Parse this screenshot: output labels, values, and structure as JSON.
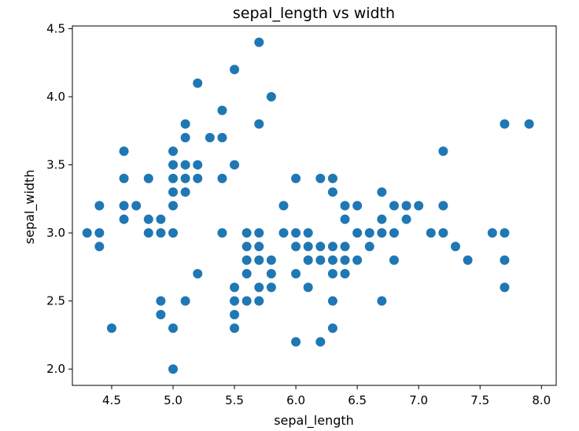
{
  "chart_data": {
    "type": "scatter",
    "title": "sepal_length vs width",
    "xlabel": "sepal_length",
    "ylabel": "sepal_width",
    "xlim": [
      4.18,
      8.12
    ],
    "ylim": [
      1.88,
      4.52
    ],
    "xticks": [
      "4.5",
      "5.0",
      "5.5",
      "6.0",
      "6.5",
      "7.0",
      "7.5",
      "8.0"
    ],
    "yticks": [
      "2.0",
      "2.5",
      "3.0",
      "3.5",
      "4.0",
      "4.5"
    ],
    "grid": false,
    "marker_color": "#1f77b4",
    "points": [
      [
        4.3,
        3.0
      ],
      [
        4.4,
        3.0
      ],
      [
        4.4,
        3.2
      ],
      [
        4.4,
        2.9
      ],
      [
        4.5,
        2.3
      ],
      [
        4.6,
        3.6
      ],
      [
        4.6,
        3.4
      ],
      [
        4.6,
        3.2
      ],
      [
        4.6,
        3.1
      ],
      [
        4.7,
        3.2
      ],
      [
        4.8,
        3.4
      ],
      [
        4.8,
        3.1
      ],
      [
        4.8,
        3.0
      ],
      [
        4.9,
        3.1
      ],
      [
        4.9,
        3.0
      ],
      [
        4.9,
        2.5
      ],
      [
        4.9,
        2.4
      ],
      [
        5.0,
        3.6
      ],
      [
        5.0,
        3.5
      ],
      [
        5.0,
        3.4
      ],
      [
        5.0,
        3.3
      ],
      [
        5.0,
        3.2
      ],
      [
        5.0,
        3.0
      ],
      [
        5.0,
        2.3
      ],
      [
        5.0,
        2.0
      ],
      [
        5.1,
        3.8
      ],
      [
        5.1,
        3.7
      ],
      [
        5.1,
        3.5
      ],
      [
        5.1,
        3.4
      ],
      [
        5.1,
        3.3
      ],
      [
        5.1,
        2.5
      ],
      [
        5.2,
        4.1
      ],
      [
        5.2,
        3.5
      ],
      [
        5.2,
        3.4
      ],
      [
        5.2,
        2.7
      ],
      [
        5.3,
        3.7
      ],
      [
        5.4,
        3.9
      ],
      [
        5.4,
        3.7
      ],
      [
        5.4,
        3.4
      ],
      [
        5.4,
        3.0
      ],
      [
        5.5,
        4.2
      ],
      [
        5.5,
        3.5
      ],
      [
        5.5,
        2.6
      ],
      [
        5.5,
        2.5
      ],
      [
        5.5,
        2.4
      ],
      [
        5.5,
        2.3
      ],
      [
        5.6,
        3.0
      ],
      [
        5.6,
        2.9
      ],
      [
        5.6,
        2.8
      ],
      [
        5.6,
        2.7
      ],
      [
        5.6,
        2.5
      ],
      [
        5.7,
        4.4
      ],
      [
        5.7,
        3.8
      ],
      [
        5.7,
        3.0
      ],
      [
        5.7,
        2.9
      ],
      [
        5.7,
        2.8
      ],
      [
        5.7,
        2.6
      ],
      [
        5.7,
        2.5
      ],
      [
        5.8,
        4.0
      ],
      [
        5.8,
        2.8
      ],
      [
        5.8,
        2.7
      ],
      [
        5.8,
        2.6
      ],
      [
        5.9,
        3.2
      ],
      [
        5.9,
        3.0
      ],
      [
        6.0,
        3.4
      ],
      [
        6.0,
        3.0
      ],
      [
        6.0,
        2.9
      ],
      [
        6.0,
        2.7
      ],
      [
        6.0,
        2.2
      ],
      [
        6.1,
        3.0
      ],
      [
        6.1,
        2.9
      ],
      [
        6.1,
        2.8
      ],
      [
        6.1,
        2.6
      ],
      [
        6.2,
        3.4
      ],
      [
        6.2,
        2.9
      ],
      [
        6.2,
        2.8
      ],
      [
        6.2,
        2.2
      ],
      [
        6.3,
        3.4
      ],
      [
        6.3,
        3.3
      ],
      [
        6.3,
        2.9
      ],
      [
        6.3,
        2.8
      ],
      [
        6.3,
        2.7
      ],
      [
        6.3,
        2.5
      ],
      [
        6.3,
        2.3
      ],
      [
        6.4,
        3.2
      ],
      [
        6.4,
        3.1
      ],
      [
        6.4,
        2.9
      ],
      [
        6.4,
        2.8
      ],
      [
        6.4,
        2.7
      ],
      [
        6.5,
        3.2
      ],
      [
        6.5,
        3.0
      ],
      [
        6.5,
        2.8
      ],
      [
        6.6,
        3.0
      ],
      [
        6.6,
        2.9
      ],
      [
        6.7,
        3.3
      ],
      [
        6.7,
        3.1
      ],
      [
        6.7,
        3.0
      ],
      [
        6.7,
        2.5
      ],
      [
        6.8,
        3.2
      ],
      [
        6.8,
        3.0
      ],
      [
        6.8,
        2.8
      ],
      [
        6.9,
        3.2
      ],
      [
        6.9,
        3.1
      ],
      [
        7.0,
        3.2
      ],
      [
        7.1,
        3.0
      ],
      [
        7.2,
        3.6
      ],
      [
        7.2,
        3.2
      ],
      [
        7.2,
        3.0
      ],
      [
        7.3,
        2.9
      ],
      [
        7.4,
        2.8
      ],
      [
        7.6,
        3.0
      ],
      [
        7.7,
        3.8
      ],
      [
        7.7,
        3.0
      ],
      [
        7.7,
        2.8
      ],
      [
        7.7,
        2.6
      ],
      [
        7.9,
        3.8
      ]
    ]
  }
}
